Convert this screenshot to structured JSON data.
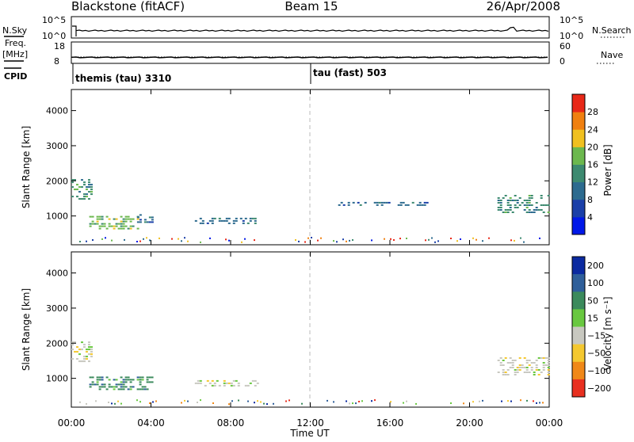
{
  "header": {
    "station": "Blackstone (fitACF)",
    "beam": "Beam 15",
    "date": "26/Apr/2008"
  },
  "noise_panel": {
    "left_label": "N.Sky",
    "right_label": "N.Search",
    "left_ticks": [
      "10^5",
      "10^0"
    ],
    "right_ticks": [
      "10^5",
      "10^0"
    ]
  },
  "freq_panel": {
    "left_label_1": "Freq.",
    "left_label_2": "[MHz]",
    "right_label": "Nave",
    "left_ticks": [
      "18",
      "8"
    ],
    "right_ticks": [
      "60",
      "0"
    ]
  },
  "cpid": {
    "label": "CPID",
    "programs": [
      {
        "name": "themis (tau) 3310",
        "start_hour": 0
      },
      {
        "name": "tau (fast) 503",
        "start_hour": 12
      }
    ]
  },
  "power_panel": {
    "ylabel": "Slant Range [km]",
    "colorbar_label": "Power [dB]",
    "colorbar_ticks": [
      "4",
      "8",
      "12",
      "16",
      "20",
      "24",
      "28"
    ],
    "colorbar_colors": [
      "#0018e8",
      "#1a3fa8",
      "#2d6b8f",
      "#3d8a70",
      "#6cb84e",
      "#f0c020",
      "#f08010",
      "#e82818"
    ]
  },
  "velocity_panel": {
    "ylabel": "Slant Range [km]",
    "colorbar_label": "Velocity [m s⁻¹]",
    "colorbar_ticks": [
      "200",
      "100",
      "50",
      "15",
      "−15",
      "−50",
      "−100",
      "−200"
    ],
    "colorbar_colors": [
      "#0b2aa0",
      "#2f5f9a",
      "#3b8a5c",
      "#69c840",
      "#c8c8c0",
      "#f4c830",
      "#f08818",
      "#e83020"
    ]
  },
  "chart_data": {
    "type": "heatmap",
    "x_ticks": [
      "00:00",
      "04:00",
      "08:00",
      "12:00",
      "16:00",
      "20:00",
      "00:00"
    ],
    "xlim_hours": [
      0,
      24
    ],
    "xlabel": "Time UT",
    "y_ticks": [
      "1000",
      "2000",
      "3000",
      "4000"
    ],
    "ylim_km": [
      180,
      4600
    ],
    "marker_hour": 12,
    "power_patches": [
      {
        "t0": 0.0,
        "t1": 1.0,
        "r0": 1450,
        "r1": 2050,
        "value": "12"
      },
      {
        "t0": 0.9,
        "t1": 3.4,
        "r0": 650,
        "r1": 1000,
        "value": "16"
      },
      {
        "t0": 3.3,
        "t1": 4.1,
        "r0": 800,
        "r1": 1050,
        "value": "8"
      },
      {
        "t0": 6.2,
        "t1": 9.4,
        "r0": 800,
        "r1": 950,
        "value": "8"
      },
      {
        "t0": 13.4,
        "t1": 17.9,
        "r0": 1300,
        "r1": 1400,
        "value": "8"
      },
      {
        "t0": 21.4,
        "t1": 24.0,
        "r0": 1100,
        "r1": 1600,
        "value": "12"
      }
    ],
    "velocity_patches": [
      {
        "t0": 0.0,
        "t1": 1.0,
        "r0": 1450,
        "r1": 2050,
        "value": "−15"
      },
      {
        "t0": 0.9,
        "t1": 4.1,
        "r0": 650,
        "r1": 1050,
        "value": "50"
      },
      {
        "t0": 6.2,
        "t1": 9.4,
        "r0": 800,
        "r1": 950,
        "value": "−15"
      },
      {
        "t0": 21.4,
        "t1": 24.0,
        "r0": 1100,
        "r1": 1600,
        "value": "−15"
      }
    ]
  }
}
